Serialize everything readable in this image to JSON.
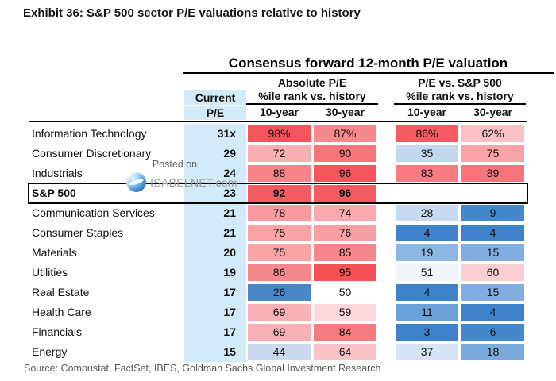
{
  "exhibit_title": "Exhibit 36: S&P 500 sector P/E valuations relative to history",
  "source": "Source: Compustat, FactSet, IBES, Goldman Sachs Global Investment Research",
  "watermark": {
    "line1": "Posted on",
    "line2": "ISABELNET.com"
  },
  "header": {
    "current_line1": "Current",
    "current_line2": "P/E",
    "abs_group": "Absolute P/E",
    "rel_group": "P/E vs. S&P 500",
    "pctile_label_abs": "%ile rank vs. history",
    "pctile_label_rel": "%ile rank vs. history",
    "abs_10y": "10-year",
    "abs_30y": "30-year",
    "rel_10y": "10-year",
    "rel_30y": "30-year"
  },
  "colors": {
    "current_pe_column_bg": "#d3eaf8",
    "high_percentile_red": "#f4525a",
    "midpoint_white": "#ffffff",
    "low_percentile_blue": "#3e82c9"
  },
  "chart_data": {
    "type": "heatmap-table",
    "title": "Consensus forward 12-month P/E valuation",
    "column_groups": [
      "Absolute P/E",
      "P/E vs. S&P 500"
    ],
    "columns": [
      "Current P/E",
      "Absolute 10-year %ile",
      "Absolute 30-year %ile",
      "Relative 10-year %ile",
      "Relative 30-year %ile"
    ],
    "rows": [
      {
        "sector": "Information Technology",
        "current_pe": "31x",
        "highlight": false,
        "cells": [
          {
            "v": "98%",
            "bg": "#f4545b"
          },
          {
            "v": "87%",
            "bg": "#f7898e"
          },
          {
            "v": "86%",
            "bg": "#f45c62"
          },
          {
            "v": "62%",
            "bg": "#fbc1c4"
          }
        ]
      },
      {
        "sector": "Consumer Discretionary",
        "current_pe": "29",
        "highlight": false,
        "cells": [
          {
            "v": "72",
            "bg": "#f9aeb2"
          },
          {
            "v": "90",
            "bg": "#f6757b"
          },
          {
            "v": "35",
            "bg": "#c3d7ef"
          },
          {
            "v": "75",
            "bg": "#f9a3a7"
          }
        ]
      },
      {
        "sector": "Industrials",
        "current_pe": "24",
        "highlight": false,
        "cells": [
          {
            "v": "88",
            "bg": "#f78489"
          },
          {
            "v": "96",
            "bg": "#f4565d"
          },
          {
            "v": "83",
            "bg": "#f67c82"
          },
          {
            "v": "89",
            "bg": "#f6747a"
          }
        ]
      },
      {
        "sector": "S&P 500",
        "current_pe": "23",
        "highlight": true,
        "cells": [
          {
            "v": "92",
            "bg": "#f45b62"
          },
          {
            "v": "96",
            "bg": "#f45b62"
          },
          {
            "v": "",
            "bg": "#ffffff"
          },
          {
            "v": "",
            "bg": "#ffffff"
          }
        ]
      },
      {
        "sector": "Communication Services",
        "current_pe": "21",
        "highlight": false,
        "cells": [
          {
            "v": "78",
            "bg": "#f89a9e"
          },
          {
            "v": "74",
            "bg": "#f9aaae"
          },
          {
            "v": "28",
            "bg": "#c6daf1"
          },
          {
            "v": "9",
            "bg": "#4388cb"
          }
        ]
      },
      {
        "sector": "Consumer Staples",
        "current_pe": "21",
        "highlight": false,
        "cells": [
          {
            "v": "75",
            "bg": "#f9a3a7"
          },
          {
            "v": "76",
            "bg": "#f9a0a4"
          },
          {
            "v": "4",
            "bg": "#3e82c9"
          },
          {
            "v": "4",
            "bg": "#3e82c9"
          }
        ]
      },
      {
        "sector": "Materials",
        "current_pe": "20",
        "highlight": false,
        "cells": [
          {
            "v": "75",
            "bg": "#f9a3a7"
          },
          {
            "v": "85",
            "bg": "#f6888d"
          },
          {
            "v": "19",
            "bg": "#8db6e3"
          },
          {
            "v": "15",
            "bg": "#81ade0"
          }
        ]
      },
      {
        "sector": "Utilities",
        "current_pe": "19",
        "highlight": false,
        "cells": [
          {
            "v": "86",
            "bg": "#f6898e"
          },
          {
            "v": "95",
            "bg": "#f45157"
          },
          {
            "v": "51",
            "bg": "#eff5fb"
          },
          {
            "v": "60",
            "bg": "#fbced1"
          }
        ]
      },
      {
        "sector": "Real Estate",
        "current_pe": "17",
        "highlight": false,
        "cells": [
          {
            "v": "26",
            "bg": "#4a87c9"
          },
          {
            "v": "50",
            "bg": "#ffffff"
          },
          {
            "v": "4",
            "bg": "#3e82c9"
          },
          {
            "v": "15",
            "bg": "#81ade0"
          }
        ]
      },
      {
        "sector": "Health Care",
        "current_pe": "17",
        "highlight": false,
        "cells": [
          {
            "v": "69",
            "bg": "#f9b1b5"
          },
          {
            "v": "59",
            "bg": "#fcd8da"
          },
          {
            "v": "11",
            "bg": "#6ba1d9"
          },
          {
            "v": "4",
            "bg": "#3e82c9"
          }
        ]
      },
      {
        "sector": "Financials",
        "current_pe": "17",
        "highlight": false,
        "cells": [
          {
            "v": "69",
            "bg": "#f9b1b5"
          },
          {
            "v": "84",
            "bg": "#f67b80"
          },
          {
            "v": "3",
            "bg": "#3e82c9"
          },
          {
            "v": "6",
            "bg": "#4388cb"
          }
        ]
      },
      {
        "sector": "Energy",
        "current_pe": "15",
        "highlight": false,
        "cells": [
          {
            "v": "44",
            "bg": "#cbd9ee"
          },
          {
            "v": "64",
            "bg": "#fbc5c8"
          },
          {
            "v": "37",
            "bg": "#d5e3f4"
          },
          {
            "v": "18",
            "bg": "#7aa9dd"
          }
        ]
      }
    ]
  }
}
